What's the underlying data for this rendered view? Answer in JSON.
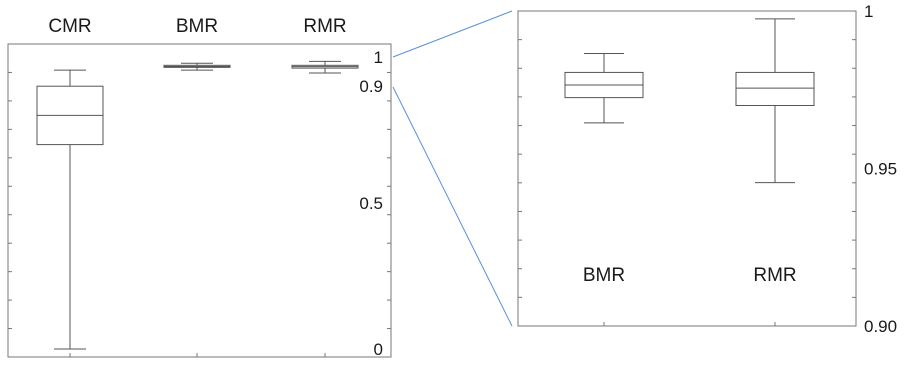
{
  "chart_data": [
    {
      "type": "box",
      "title": "",
      "xlabel": "",
      "ylabel": "",
      "ylim": [
        0,
        1
      ],
      "y_axis_side": "right",
      "y_tick_labels": [
        {
          "value": 1,
          "label": "1"
        },
        {
          "value": 0.9,
          "label": "0.9"
        },
        {
          "value": 0.5,
          "label": "0.5"
        },
        {
          "value": 0,
          "label": "0"
        }
      ],
      "category_label_position": "top",
      "series": [
        {
          "category": "CMR",
          "min": 0.0,
          "q1": 0.7,
          "median": 0.8,
          "q3": 0.9,
          "max": 0.955
        },
        {
          "category": "BMR",
          "min": 0.955,
          "q1": 0.9645,
          "median": 0.9675,
          "q3": 0.9715,
          "max": 0.9785
        },
        {
          "category": "RMR",
          "min": 0.945,
          "q1": 0.962,
          "median": 0.967,
          "q3": 0.9715,
          "max": 0.985
        }
      ]
    },
    {
      "type": "box",
      "title": "",
      "xlabel": "",
      "ylabel": "",
      "ylim": [
        0.9,
        1.0
      ],
      "y_axis_side": "right",
      "y_tick_labels": [
        {
          "value": 1.0,
          "label": "1"
        },
        {
          "value": 0.95,
          "label": "0.95"
        },
        {
          "value": 0.9,
          "label": "0.90"
        }
      ],
      "category_label_position": "bottom-inside",
      "series": [
        {
          "category": "BMR",
          "min": 0.9645,
          "q1": 0.9725,
          "median": 0.9765,
          "q3": 0.9805,
          "max": 0.9865
        },
        {
          "category": "RMR",
          "min": 0.9455,
          "q1": 0.97,
          "median": 0.9755,
          "q3": 0.9805,
          "max": 0.9975
        }
      ]
    }
  ]
}
